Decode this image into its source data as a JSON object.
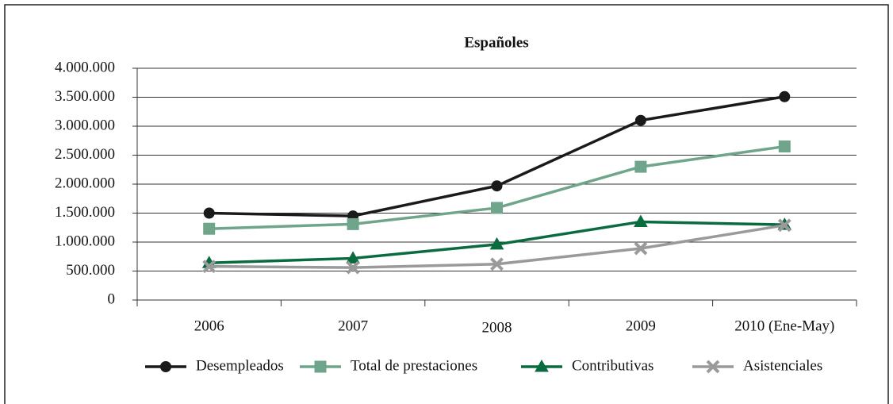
{
  "chart_data": {
    "type": "line",
    "title": "Españoles",
    "categories": [
      "2006",
      "2007",
      "2008",
      "2009",
      "2010 (Ene-May)"
    ],
    "series": [
      {
        "name": "Desempleados",
        "color": "#1a1a1a",
        "marker": "circle",
        "values": [
          1500000,
          1450000,
          1970000,
          3100000,
          3510000
        ]
      },
      {
        "name": "Total de prestaciones",
        "color": "#6fa58a",
        "marker": "square",
        "values": [
          1230000,
          1310000,
          1590000,
          2300000,
          2650000
        ]
      },
      {
        "name": "Contributivas",
        "color": "#0a6b3f",
        "marker": "triangle",
        "values": [
          640000,
          720000,
          960000,
          1350000,
          1300000
        ]
      },
      {
        "name": "Asistenciales",
        "color": "#9a9a9a",
        "marker": "x",
        "values": [
          580000,
          560000,
          620000,
          890000,
          1290000
        ]
      }
    ],
    "ylim": [
      0,
      4000000
    ],
    "yticks": [
      0,
      {
        "value": 500000,
        "label": "500.000"
      },
      {
        "value": 1000000,
        "label": "1.000.000"
      },
      {
        "value": 1500000,
        "label": "1.500.000"
      },
      {
        "value": 2000000,
        "label": "2.000.000"
      },
      {
        "value": 2500000,
        "label": "2.500.000"
      },
      {
        "value": 3000000,
        "label": "3.000.000"
      },
      {
        "value": 3500000,
        "label": "3.500.000"
      },
      {
        "value": 4000000,
        "label": "4.000.000"
      }
    ],
    "grid": true,
    "legend": "bottom"
  }
}
